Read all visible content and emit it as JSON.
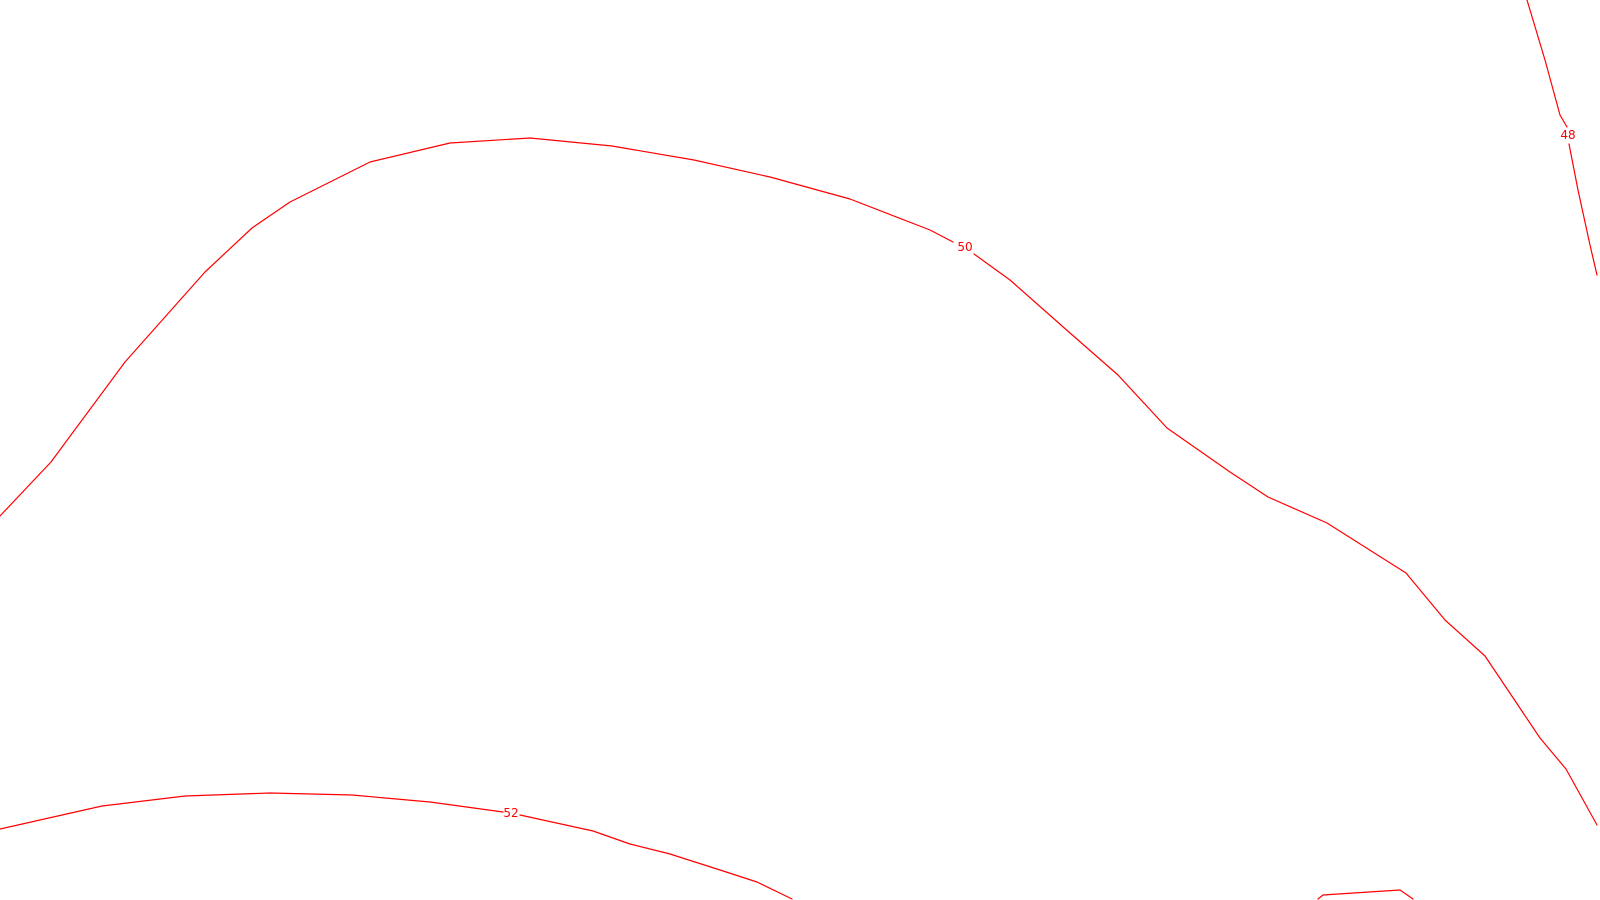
{
  "map": {
    "line_color": "#ff0000",
    "background": "#ffffff",
    "contours": [
      {
        "id": "48",
        "label": "48"
      },
      {
        "id": "50",
        "label": "50"
      },
      {
        "id": "52",
        "label": "52"
      },
      {
        "id": "unlabeled",
        "label": ""
      }
    ]
  }
}
